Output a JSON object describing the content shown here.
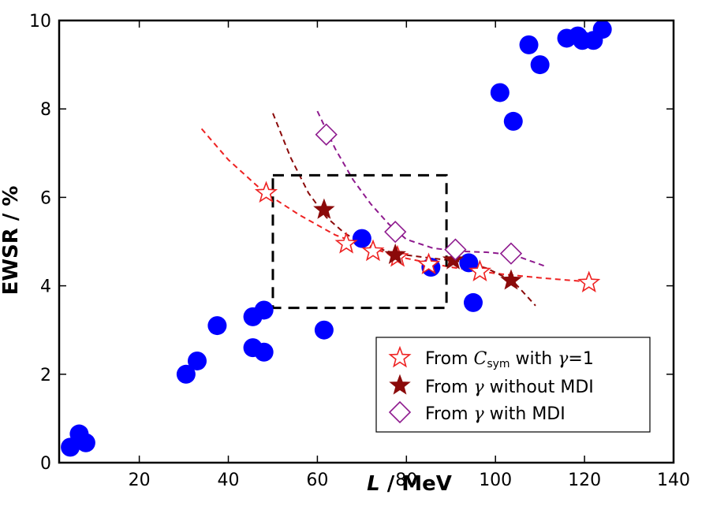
{
  "chart_data": {
    "type": "scatter",
    "title": "",
    "xlabel_italic": "L",
    "xlabel_rest": " / MeV",
    "ylabel": "EWSR / %",
    "xlim": [
      2,
      140
    ],
    "ylim": [
      0,
      10
    ],
    "xticks": [
      20,
      40,
      60,
      80,
      100,
      120,
      140
    ],
    "yticks": [
      0,
      2,
      4,
      6,
      8,
      10
    ],
    "grid": false,
    "legend_position": "lower-right",
    "dots": {
      "name": "data points",
      "color": "#0000ff",
      "points": [
        [
          4.5,
          0.35
        ],
        [
          6.5,
          0.65
        ],
        [
          8,
          0.45
        ],
        [
          30.5,
          2.0
        ],
        [
          33,
          2.3
        ],
        [
          37.5,
          3.1
        ],
        [
          45.5,
          2.6
        ],
        [
          48,
          2.5
        ],
        [
          45.5,
          3.3
        ],
        [
          48,
          3.45
        ],
        [
          61.5,
          3.0
        ],
        [
          70,
          5.07
        ],
        [
          85.5,
          4.42
        ],
        [
          94,
          4.52
        ],
        [
          95,
          3.62
        ],
        [
          101,
          8.37
        ],
        [
          104,
          7.72
        ],
        [
          107.5,
          9.45
        ],
        [
          110,
          9.0
        ],
        [
          116,
          9.6
        ],
        [
          118.5,
          9.65
        ],
        [
          119.5,
          9.55
        ],
        [
          122,
          9.55
        ],
        [
          124,
          9.8
        ]
      ]
    },
    "box": {
      "x": [
        50,
        89
      ],
      "y": [
        3.5,
        6.5
      ]
    },
    "series": [
      {
        "name": "From C_sym with γ=1",
        "legend_main": "From ",
        "legend_c": "C",
        "legend_sub": "sym",
        "legend_rest": " with ",
        "legend_gamma": "γ",
        "legend_tail": "=1",
        "marker": "open-star",
        "color": "#ee2222",
        "points": [
          [
            48.5,
            6.1
          ],
          [
            66.5,
            4.95
          ],
          [
            72.5,
            4.78
          ],
          [
            78,
            4.65
          ],
          [
            85,
            4.48
          ],
          [
            96.5,
            4.32
          ],
          [
            121,
            4.07
          ]
        ],
        "fit": [
          [
            34,
            7.55
          ],
          [
            40,
            6.85
          ],
          [
            48,
            6.12
          ],
          [
            56,
            5.6
          ],
          [
            64,
            5.15
          ],
          [
            72,
            4.85
          ],
          [
            80,
            4.62
          ],
          [
            90,
            4.42
          ],
          [
            100,
            4.28
          ],
          [
            110,
            4.18
          ],
          [
            122,
            4.08
          ]
        ]
      },
      {
        "name": "From γ without MDI",
        "legend_main": "From ",
        "legend_gamma": "γ",
        "legend_rest": " without MDI",
        "marker": "filled-star",
        "color": "#8b0a0a",
        "points": [
          [
            61.5,
            5.72
          ],
          [
            77.5,
            4.7
          ],
          [
            90.5,
            4.58
          ],
          [
            103.5,
            4.12
          ]
        ],
        "fit": [
          [
            50,
            7.9
          ],
          [
            54,
            6.9
          ],
          [
            58,
            6.1
          ],
          [
            62,
            5.55
          ],
          [
            66,
            5.2
          ],
          [
            70,
            4.95
          ],
          [
            78,
            4.72
          ],
          [
            86,
            4.62
          ],
          [
            92,
            4.55
          ],
          [
            98,
            4.4
          ],
          [
            104,
            4.1
          ],
          [
            109,
            3.55
          ]
        ]
      },
      {
        "name": "From γ with MDI",
        "legend_main": "From ",
        "legend_gamma": "γ",
        "legend_rest": " with MDI",
        "marker": "open-diamond",
        "color": "#8e1a8e",
        "points": [
          [
            62,
            7.42
          ],
          [
            77.5,
            5.22
          ],
          [
            91,
            4.82
          ],
          [
            103.5,
            4.73
          ]
        ],
        "fit": [
          [
            60,
            7.95
          ],
          [
            64,
            7.1
          ],
          [
            68,
            6.4
          ],
          [
            72,
            5.85
          ],
          [
            76,
            5.4
          ],
          [
            80,
            5.05
          ],
          [
            86,
            4.85
          ],
          [
            92,
            4.78
          ],
          [
            98,
            4.76
          ],
          [
            104,
            4.7
          ],
          [
            111,
            4.45
          ]
        ]
      }
    ]
  }
}
